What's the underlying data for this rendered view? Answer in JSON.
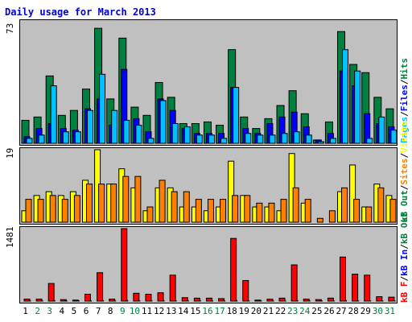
{
  "title": "Daily usage for March 2013",
  "colors": {
    "visits": "#ffff00",
    "sites": "#ff8000",
    "hits": "#008040",
    "files": "#0000ff",
    "pages": "#00c0ff",
    "kb_f": "#ff0000",
    "kb_in": "#0000ff",
    "kb_out": "#008040",
    "weekend_label": "#008040",
    "weekday_label": "#000000"
  },
  "legend_top": {
    "pages": "Pages",
    "files": "Files",
    "hits": "Hits",
    "sep": "/"
  },
  "legend_mid": {
    "visits": "Visits",
    "sites": "Sites",
    "out": "kB Out",
    "sep": "/"
  },
  "legend_bot": {
    "f": "kB F",
    "in": "kB In",
    "out": "kB Out",
    "sep": "/"
  },
  "chart_data": [
    {
      "type": "bar",
      "name": "hits-files-pages",
      "ymax_label": "73",
      "ylim": [
        0,
        73
      ],
      "categories": [
        "1",
        "2",
        "3",
        "4",
        "5",
        "6",
        "7",
        "8",
        "9",
        "10",
        "11",
        "12",
        "13",
        "14",
        "15",
        "16",
        "17",
        "18",
        "19",
        "20",
        "21",
        "22",
        "23",
        "24",
        "25",
        "26",
        "27",
        "28",
        "29",
        "30",
        "31"
      ],
      "weekend_days": [
        2,
        3,
        9,
        10,
        16,
        17,
        23,
        24,
        30,
        31
      ],
      "series": [
        {
          "name": "Hits",
          "values": [
            14,
            16,
            41,
            17,
            20,
            33,
            70,
            27,
            64,
            22,
            17,
            37,
            28,
            12,
            12,
            13,
            11,
            57,
            16,
            9,
            15,
            23,
            32,
            18,
            2,
            13,
            68,
            48,
            43,
            28,
            21
          ]
        },
        {
          "name": "Files",
          "values": [
            4,
            9,
            12,
            9,
            8,
            21,
            27,
            11,
            45,
            15,
            7,
            27,
            20,
            9,
            6,
            6,
            6,
            34,
            9,
            6,
            12,
            16,
            19,
            10,
            2,
            6,
            44,
            35,
            18,
            12,
            10
          ]
        },
        {
          "name": "Pages",
          "values": [
            3,
            5,
            35,
            7,
            7,
            20,
            42,
            20,
            14,
            11,
            3,
            26,
            12,
            10,
            5,
            5,
            3,
            34,
            6,
            5,
            5,
            6,
            7,
            5,
            1,
            3,
            57,
            44,
            3,
            16,
            8
          ]
        }
      ]
    },
    {
      "type": "bar",
      "name": "visits-sites",
      "ymax_label": "19",
      "ylim": [
        0,
        19
      ],
      "categories": [
        "1",
        "2",
        "3",
        "4",
        "5",
        "6",
        "7",
        "8",
        "9",
        "10",
        "11",
        "12",
        "13",
        "14",
        "15",
        "16",
        "17",
        "18",
        "19",
        "20",
        "21",
        "22",
        "23",
        "24",
        "25",
        "26",
        "27",
        "28",
        "29",
        "30",
        "31"
      ],
      "series": [
        {
          "name": "Visits",
          "values": [
            3,
            7,
            8,
            7,
            8,
            11,
            19,
            10,
            14,
            9,
            3,
            9,
            9,
            4,
            4,
            3,
            4,
            16,
            7,
            4,
            4,
            3,
            18,
            5,
            0,
            0,
            8,
            15,
            4,
            10,
            7
          ]
        },
        {
          "name": "Sites",
          "values": [
            6,
            6,
            7,
            6,
            7,
            10,
            10,
            10,
            12,
            12,
            4,
            11,
            8,
            8,
            6,
            6,
            6,
            7,
            7,
            5,
            5,
            6,
            9,
            6,
            1,
            3,
            9,
            6,
            4,
            9,
            6
          ]
        }
      ]
    },
    {
      "type": "bar",
      "name": "kbytes",
      "ymax_label": "1481",
      "ylim": [
        0,
        1481
      ],
      "categories": [
        "1",
        "2",
        "3",
        "4",
        "5",
        "6",
        "7",
        "8",
        "9",
        "10",
        "11",
        "12",
        "13",
        "14",
        "15",
        "16",
        "17",
        "18",
        "19",
        "20",
        "21",
        "22",
        "23",
        "24",
        "25",
        "26",
        "27",
        "28",
        "29",
        "30",
        "31"
      ],
      "series": [
        {
          "name": "kB F",
          "values": [
            40,
            40,
            360,
            30,
            20,
            140,
            580,
            40,
            1481,
            160,
            140,
            170,
            530,
            70,
            60,
            60,
            50,
            1280,
            420,
            20,
            40,
            60,
            740,
            40,
            30,
            60,
            900,
            550,
            530,
            90,
            80
          ]
        },
        {
          "name": "kB In",
          "values": [
            5,
            5,
            10,
            5,
            5,
            5,
            10,
            5,
            10,
            5,
            5,
            5,
            5,
            5,
            5,
            5,
            5,
            10,
            5,
            5,
            5,
            5,
            10,
            5,
            5,
            5,
            10,
            5,
            5,
            5,
            5
          ]
        }
      ]
    }
  ]
}
